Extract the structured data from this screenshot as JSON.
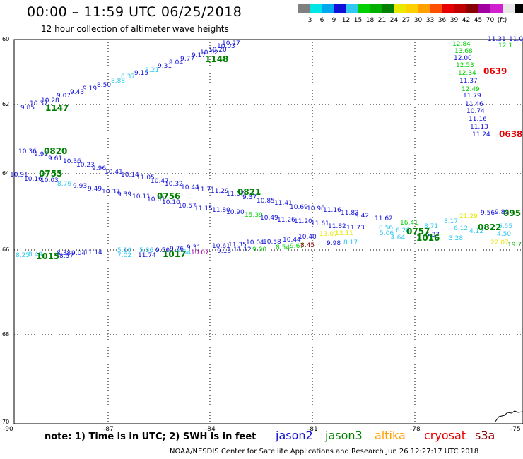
{
  "title": "00:00 – 11:59 UTC 06/25/2018",
  "subtitle": "12 hour collection of altimeter wave heights",
  "legend": {
    "colors": [
      "#808080",
      "#00e5e5",
      "#00a8f0",
      "#1010d8",
      "#30c8f0",
      "#00d000",
      "#00b000",
      "#008000",
      "#e8e800",
      "#ffd000",
      "#ffa000",
      "#ff5000",
      "#e80000",
      "#c00000",
      "#880000",
      "#a000a0",
      "#d020d0",
      "#e8e8e8",
      "#000000"
    ],
    "labels": [
      "3",
      "6",
      "9",
      "12",
      "15",
      "18",
      "21",
      "24",
      "27",
      "30",
      "33",
      "36",
      "39",
      "42",
      "45",
      "70",
      "(ft)"
    ]
  },
  "axes": {
    "y_labels": [
      "60",
      "62",
      "64",
      "66",
      "68",
      "70"
    ],
    "x_labels": [
      "-90",
      "-87",
      "-84",
      "-81",
      "-78",
      "-75"
    ]
  },
  "note": "note: 1) Time is in UTC; 2) SWH is in feet",
  "satellites": [
    {
      "name": "jason2",
      "color": "#1010d8"
    },
    {
      "name": "jason3",
      "color": "#008000"
    },
    {
      "name": "altika",
      "color": "#ffa000"
    },
    {
      "name": "cryosat",
      "color": "#e80000"
    },
    {
      "name": "s3a",
      "color": "#880000"
    }
  ],
  "credit": "NOAA/NESDIS Center for Satellite Applications and Research   Jun 26 12:27:17 UTC 2018",
  "points": [
    {
      "t": "9.85",
      "c": "#1010d8"
    },
    {
      "t": "10.37",
      "c": "#1010d8"
    },
    {
      "t": "10.28",
      "c": "#1010d8"
    },
    {
      "t": "9.07",
      "c": "#1010d8"
    },
    {
      "t": "9.43",
      "c": "#1010d8"
    },
    {
      "t": "9.19",
      "c": "#1010d8"
    },
    {
      "t": "8.50",
      "c": "#1010d8"
    },
    {
      "t": "8.88",
      "c": "#30c8f0"
    },
    {
      "t": "8.37",
      "c": "#30c8f0"
    },
    {
      "t": "9.15",
      "c": "#1010d8"
    },
    {
      "t": "8.21",
      "c": "#30c8f0"
    },
    {
      "t": "9.31",
      "c": "#1010d8"
    },
    {
      "t": "9.04",
      "c": "#1010d8"
    },
    {
      "t": "9.77",
      "c": "#1010d8"
    },
    {
      "t": "9.17",
      "c": "#1010d8"
    },
    {
      "t": "10.02",
      "c": "#1010d8"
    },
    {
      "t": "10.20",
      "c": "#1010d8"
    },
    {
      "t": "10.03",
      "c": "#1010d8"
    },
    {
      "t": "10.27",
      "c": "#1010d8"
    },
    {
      "t": "10.36",
      "c": "#1010d8"
    },
    {
      "t": "9.92",
      "c": "#1010d8"
    },
    {
      "t": "9.61",
      "c": "#1010d8"
    },
    {
      "t": "10.36",
      "c": "#1010d8"
    },
    {
      "t": "10.23",
      "c": "#1010d8"
    },
    {
      "t": "9.96",
      "c": "#1010d8"
    },
    {
      "t": "10.41",
      "c": "#1010d8"
    },
    {
      "t": "10.14",
      "c": "#1010d8"
    },
    {
      "t": "11.05",
      "c": "#1010d8"
    },
    {
      "t": "10.47",
      "c": "#1010d8"
    },
    {
      "t": "10.32",
      "c": "#1010d8"
    },
    {
      "t": "10.44",
      "c": "#1010d8"
    },
    {
      "t": "11.71",
      "c": "#1010d8"
    },
    {
      "t": "11.29",
      "c": "#1010d8"
    },
    {
      "t": "11.07",
      "c": "#1010d8"
    },
    {
      "t": "9.37",
      "c": "#1010d8"
    },
    {
      "t": "10.85",
      "c": "#1010d8"
    },
    {
      "t": "11.41",
      "c": "#1010d8"
    },
    {
      "t": "10.69",
      "c": "#1010d8"
    },
    {
      "t": "10.98",
      "c": "#1010d8"
    },
    {
      "t": "11.16",
      "c": "#1010d8"
    },
    {
      "t": "11.83",
      "c": "#1010d8"
    },
    {
      "t": "9.42",
      "c": "#1010d8"
    },
    {
      "t": "11.62",
      "c": "#1010d8"
    },
    {
      "t": "10.91",
      "c": "#1010d8"
    },
    {
      "t": "10.16",
      "c": "#1010d8"
    },
    {
      "t": "10.03",
      "c": "#1010d8"
    },
    {
      "t": "8.76",
      "c": "#30c8f0"
    },
    {
      "t": "9.93",
      "c": "#1010d8"
    },
    {
      "t": "9.49",
      "c": "#1010d8"
    },
    {
      "t": "10.37",
      "c": "#1010d8"
    },
    {
      "t": "9.39",
      "c": "#1010d8"
    },
    {
      "t": "10.11",
      "c": "#1010d8"
    },
    {
      "t": "10.61",
      "c": "#1010d8"
    },
    {
      "t": "10.10",
      "c": "#1010d8"
    },
    {
      "t": "10.57",
      "c": "#1010d8"
    },
    {
      "t": "11.15",
      "c": "#1010d8"
    },
    {
      "t": "11.80",
      "c": "#1010d8"
    },
    {
      "t": "10.90",
      "c": "#1010d8"
    },
    {
      "t": "15.39",
      "c": "#00d000"
    },
    {
      "t": "10.49",
      "c": "#1010d8"
    },
    {
      "t": "11.26",
      "c": "#1010d8"
    },
    {
      "t": "11.20",
      "c": "#1010d8"
    },
    {
      "t": "11.61",
      "c": "#1010d8"
    },
    {
      "t": "11.82",
      "c": "#1010d8"
    },
    {
      "t": "11.73",
      "c": "#1010d8"
    },
    {
      "t": "8.56",
      "c": "#30c8f0"
    },
    {
      "t": "16.41",
      "c": "#00d000"
    },
    {
      "t": "6.28",
      "c": "#30c8f0"
    },
    {
      "t": "8.71",
      "c": "#30c8f0"
    },
    {
      "t": "5.06",
      "c": "#30c8f0"
    },
    {
      "t": "4.64",
      "c": "#30c8f0"
    },
    {
      "t": "6.37",
      "c": "#1010d8"
    },
    {
      "t": "8.17",
      "c": "#30c8f0"
    },
    {
      "t": "21.29",
      "c": "#e8e800"
    },
    {
      "t": "9.56",
      "c": "#1010d8"
    },
    {
      "t": "9.89",
      "c": "#1010d8"
    },
    {
      "t": "6.12",
      "c": "#30c8f0"
    },
    {
      "t": "4.12",
      "c": "#30c8f0"
    },
    {
      "t": "3.28",
      "c": "#30c8f0"
    },
    {
      "t": "6.55",
      "c": "#30c8f0"
    },
    {
      "t": "4.50",
      "c": "#30c8f0"
    },
    {
      "t": "22.07",
      "c": "#e8e800"
    },
    {
      "t": "19.7",
      "c": "#00b000"
    },
    {
      "t": "8.25",
      "c": "#30c8f0"
    },
    {
      "t": "8.49",
      "c": "#30c8f0"
    },
    {
      "t": "8.38",
      "c": "#1010d8"
    },
    {
      "t": "9.04",
      "c": "#1010d8"
    },
    {
      "t": "11.14",
      "c": "#1010d8"
    },
    {
      "t": "8.57",
      "c": "#1010d8"
    },
    {
      "t": "5.10",
      "c": "#30c8f0"
    },
    {
      "t": "7.02",
      "c": "#30c8f0"
    },
    {
      "t": "5.86",
      "c": "#30c8f0"
    },
    {
      "t": "11.74",
      "c": "#1010d8"
    },
    {
      "t": "9.50",
      "c": "#1010d8"
    },
    {
      "t": "9.76",
      "c": "#1010d8"
    },
    {
      "t": "9.31",
      "c": "#1010d8"
    },
    {
      "t": "8.54",
      "c": "#30c8f0"
    },
    {
      "t": "10.07",
      "c": "#a000a0"
    },
    {
      "t": "10.61",
      "c": "#1010d8"
    },
    {
      "t": "11.35",
      "c": "#1010d8"
    },
    {
      "t": "9.18",
      "c": "#1010d8"
    },
    {
      "t": "11.12",
      "c": "#1010d8"
    },
    {
      "t": "10.04",
      "c": "#1010d8"
    },
    {
      "t": "9.00",
      "c": "#00d000"
    },
    {
      "t": "10.58",
      "c": "#1010d8"
    },
    {
      "t": "8.54",
      "c": "#00d000"
    },
    {
      "t": "9.67",
      "c": "#00d000"
    },
    {
      "t": "10.44",
      "c": "#1010d8"
    },
    {
      "t": "10.40",
      "c": "#1010d8"
    },
    {
      "t": "8.45",
      "c": "#880000"
    },
    {
      "t": "13.07",
      "c": "#e8e800"
    },
    {
      "t": "13.11",
      "c": "#e8e800"
    },
    {
      "t": "9.98",
      "c": "#1010d8"
    },
    {
      "t": "8.17",
      "c": "#30c8f0"
    },
    {
      "t": "11.31",
      "c": "#1010d8"
    },
    {
      "t": "11.0",
      "c": "#1010d8"
    },
    {
      "t": "12.84",
      "c": "#00d000"
    },
    {
      "t": "12.1",
      "c": "#00d000"
    },
    {
      "t": "13.68",
      "c": "#00d000"
    },
    {
      "t": "12.00",
      "c": "#1010d8"
    },
    {
      "t": "12.53",
      "c": "#00d000"
    },
    {
      "t": "12.34",
      "c": "#00d000"
    },
    {
      "t": "11.37",
      "c": "#1010d8"
    },
    {
      "t": "12.49",
      "c": "#00d000"
    },
    {
      "t": "11.79",
      "c": "#1010d8"
    },
    {
      "t": "11.46",
      "c": "#1010d8"
    },
    {
      "t": "10.74",
      "c": "#1010d8"
    },
    {
      "t": "11.16",
      "c": "#1010d8"
    },
    {
      "t": "11.13",
      "c": "#1010d8"
    },
    {
      "t": "11.24",
      "c": "#1010d8"
    }
  ],
  "times": [
    {
      "t": "1147",
      "c": "#008000"
    },
    {
      "t": "1148",
      "c": "#008000"
    },
    {
      "t": "0820",
      "c": "#008000"
    },
    {
      "t": "0755",
      "c": "#008000"
    },
    {
      "t": "0756",
      "c": "#008000"
    },
    {
      "t": "0821",
      "c": "#008000"
    },
    {
      "t": "0757",
      "c": "#008000"
    },
    {
      "t": "1016",
      "c": "#008000"
    },
    {
      "t": "0822",
      "c": "#008000"
    },
    {
      "t": "1015",
      "c": "#008000"
    },
    {
      "t": "1017",
      "c": "#008000"
    },
    {
      "t": "0639",
      "c": "#e80000"
    },
    {
      "t": "0638",
      "c": "#e80000"
    },
    {
      "t": "095",
      "c": "#008000"
    }
  ]
}
